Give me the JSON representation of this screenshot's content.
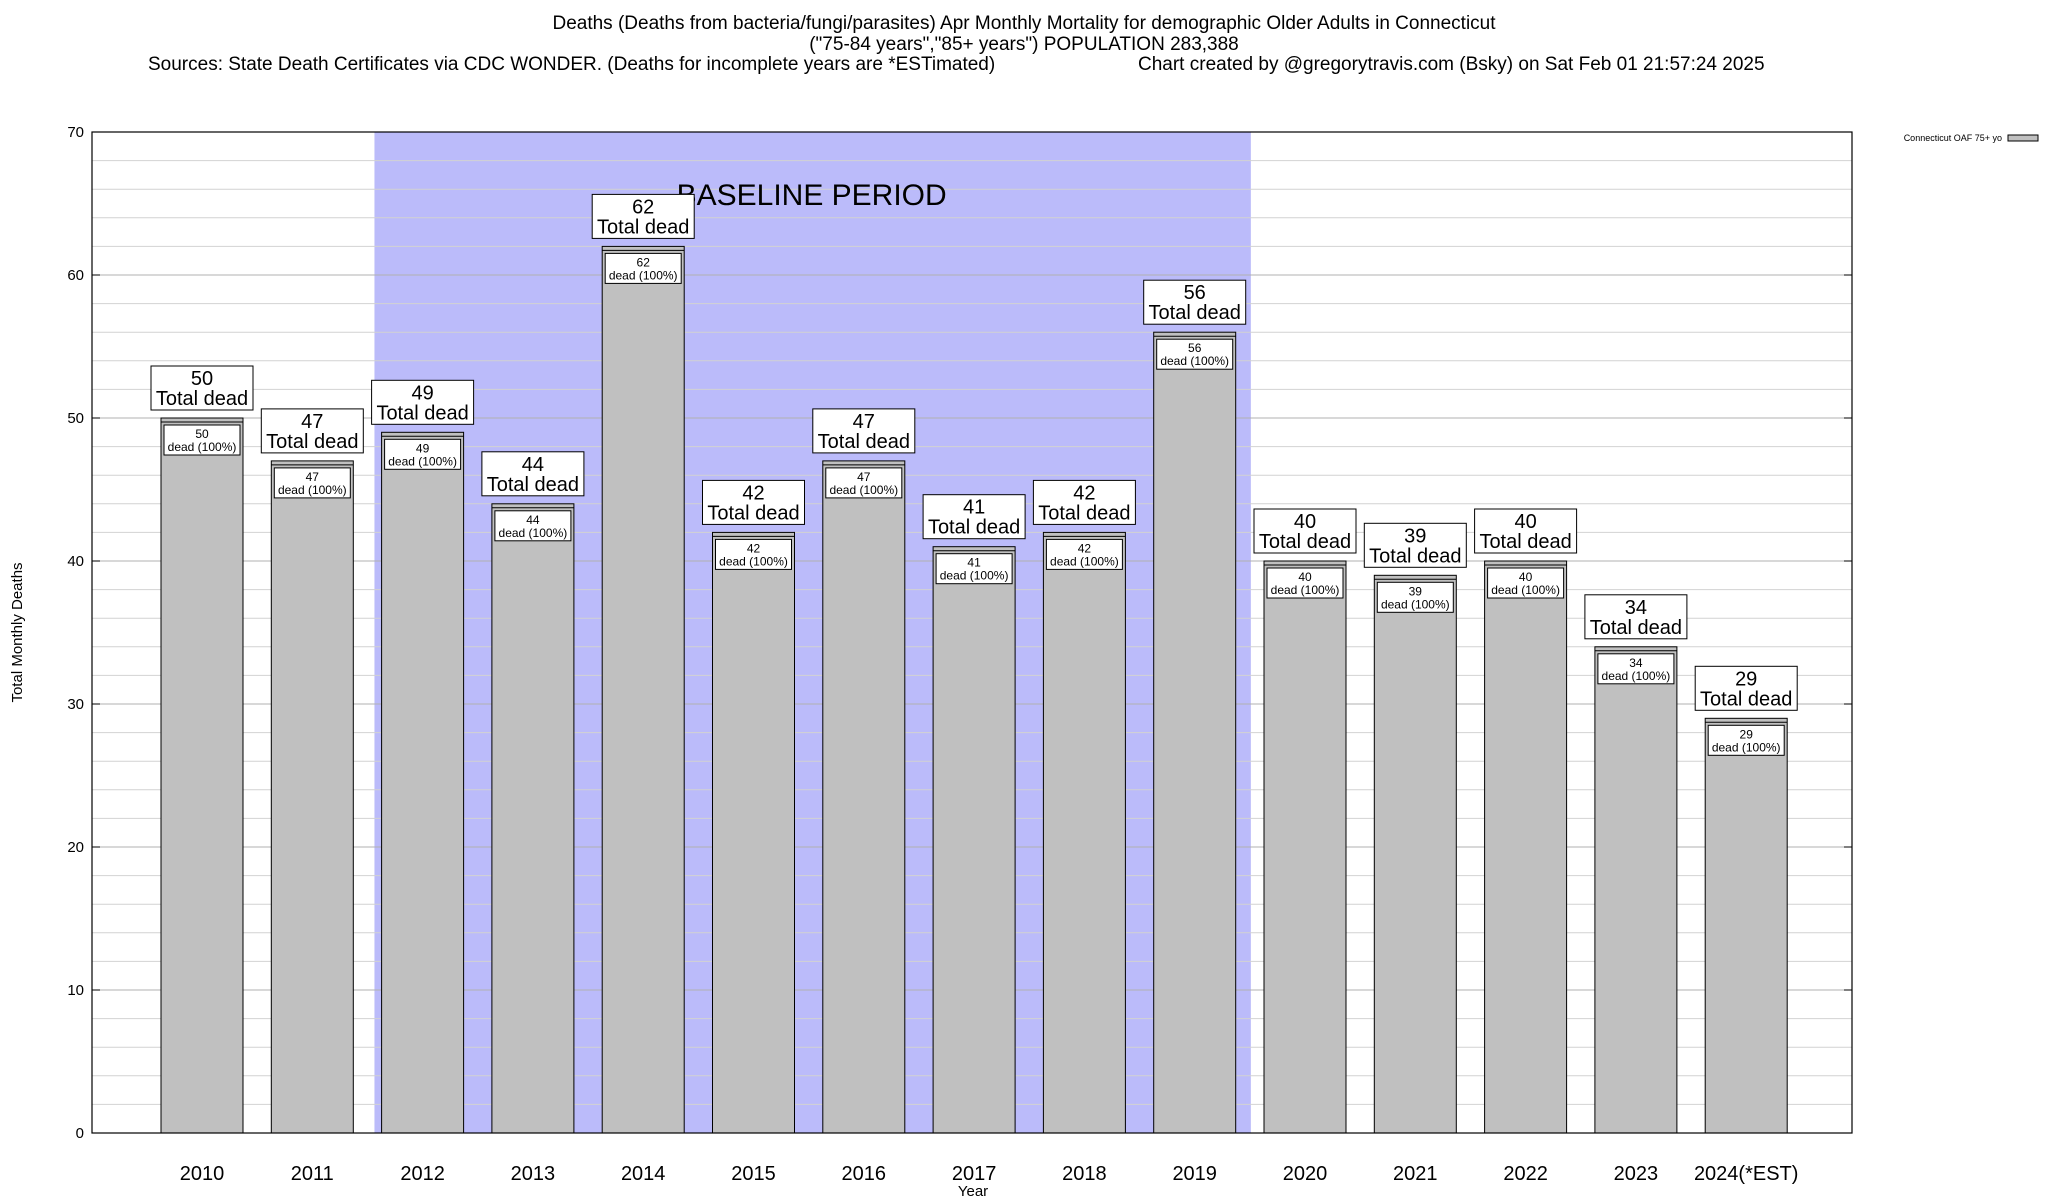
{
  "header": {
    "title": "Deaths (Deaths from bacteria/fungi/parasites) Apr Monthly Mortality for demographic Older Adults in Connecticut",
    "subtitle": "(\"75-84 years\",\"85+ years\") POPULATION 283,388",
    "sources": "Sources: State Death Certificates via CDC WONDER. (Deaths for incomplete years are *ESTimated)",
    "credit": "Chart created by @gregorytravis.com (Bsky) on Sat Feb 01 21:57:24 2025"
  },
  "chart_data": {
    "type": "bar",
    "categories": [
      "2010",
      "2011",
      "2012",
      "2013",
      "2014",
      "2015",
      "2016",
      "2017",
      "2018",
      "2019",
      "2020",
      "2021",
      "2022",
      "2023",
      "2024(*EST)"
    ],
    "series": [
      {
        "name": "Connecticut OAF 75+ yo",
        "values": [
          50,
          47,
          49,
          44,
          62,
          42,
          47,
          41,
          42,
          56,
          40,
          39,
          40,
          34,
          29
        ]
      }
    ],
    "xlabel": "Year",
    "ylabel": "Total Monthly Deaths",
    "ylim": [
      0,
      70
    ],
    "yticks": [
      0,
      10,
      20,
      30,
      40,
      50,
      60,
      70
    ],
    "grid": true,
    "legend": "top-right",
    "bar_color": "#c0c0c0",
    "baseline": {
      "label": "BASELINE PERIOD",
      "start": "2012",
      "end": "2019",
      "color": "#bbbbfa"
    },
    "top_label_suffix": "Total dead",
    "inner_label_suffix": "dead (100%)"
  }
}
